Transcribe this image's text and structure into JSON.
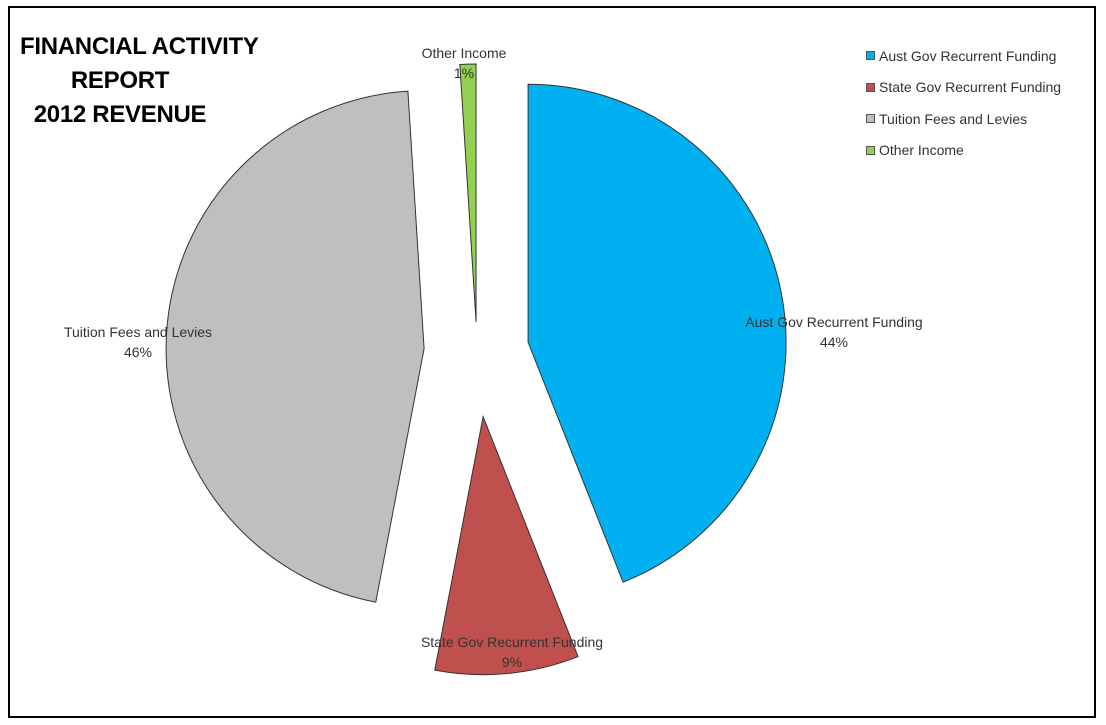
{
  "chart_data": {
    "type": "pie",
    "title": [
      "FINANCIAL ACTIVITY",
      "REPORT",
      "2012 REVENUE"
    ],
    "categories": [
      "Aust Gov Recurrent Funding",
      "State Gov Recurrent Funding",
      "Tuition Fees and Levies",
      "Other Income"
    ],
    "values": [
      44,
      9,
      46,
      1
    ],
    "value_labels": [
      "44%",
      "9%",
      "46%",
      "1%"
    ],
    "colors": [
      "#00B0F0",
      "#C0504D",
      "#BFBFBF",
      "#92D050"
    ],
    "exploded": true,
    "legend_position": "top-right"
  }
}
